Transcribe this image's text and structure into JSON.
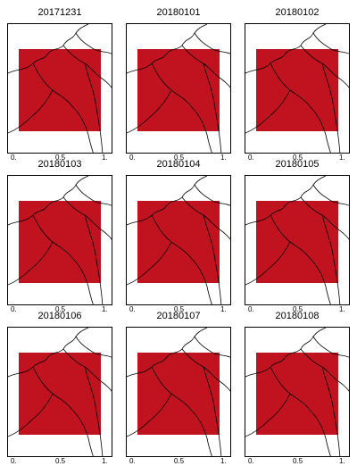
{
  "panels": [
    {
      "date": "20171231"
    },
    {
      "date": "20180101"
    },
    {
      "date": "20180102"
    },
    {
      "date": "20180103"
    },
    {
      "date": "20180104"
    },
    {
      "date": "20180105"
    },
    {
      "date": "20180106"
    },
    {
      "date": "20180107"
    },
    {
      "date": "20180108"
    }
  ],
  "colorbar": {
    "ticks": [
      "0.",
      "0.5",
      "1."
    ],
    "colors": [
      "#cc0000",
      "#e2231a",
      "#f05a14",
      "#f7931e",
      "#fbbd23",
      "#fde047",
      "#c8e64a",
      "#33cc66",
      "#17b6d6",
      "#2b6fe0",
      "#1a2fd0",
      "#4a1aa8"
    ]
  },
  "colors": {
    "dominant": "#c1121f"
  }
}
